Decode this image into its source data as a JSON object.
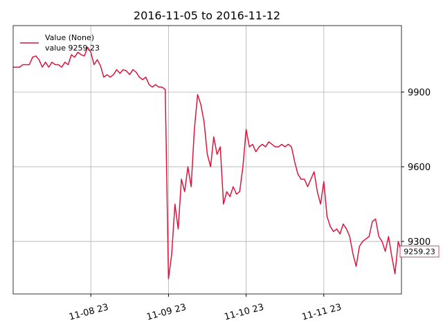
{
  "chart_data": {
    "type": "line",
    "title": "2016-11-05 to 2016-11-12",
    "x": [
      "11-07 23",
      "11-08 00",
      "11-08 01",
      "11-08 02",
      "11-08 03",
      "11-08 04",
      "11-08 05",
      "11-08 06",
      "11-08 07",
      "11-08 08",
      "11-08 09",
      "11-08 10",
      "11-08 11",
      "11-08 12",
      "11-08 13",
      "11-08 14",
      "11-08 15",
      "11-08 16",
      "11-08 17",
      "11-08 18",
      "11-08 19",
      "11-08 20",
      "11-08 21",
      "11-08 22",
      "11-08 23",
      "11-09 00",
      "11-09 01",
      "11-09 02",
      "11-09 03",
      "11-09 04",
      "11-09 05",
      "11-09 06",
      "11-09 07",
      "11-09 08",
      "11-09 09",
      "11-09 10",
      "11-09 11",
      "11-09 12",
      "11-09 13",
      "11-09 14",
      "11-09 15",
      "11-09 16",
      "11-09 17",
      "11-09 18",
      "11-09 19",
      "11-09 20",
      "11-09 21",
      "11-09 22",
      "11-09 23",
      "11-10 00",
      "11-10 01",
      "11-10 02",
      "11-10 03",
      "11-10 04",
      "11-10 05",
      "11-10 06",
      "11-10 07",
      "11-10 08",
      "11-10 09",
      "11-10 10",
      "11-10 11",
      "11-10 12",
      "11-10 13",
      "11-10 14",
      "11-10 15",
      "11-10 16",
      "11-10 17",
      "11-10 18",
      "11-10 19",
      "11-10 20",
      "11-10 21",
      "11-10 22",
      "11-10 23",
      "11-11 00",
      "11-11 01",
      "11-11 02",
      "11-11 03",
      "11-11 04",
      "11-11 05",
      "11-11 06",
      "11-11 07",
      "11-11 08",
      "11-11 09",
      "11-11 10",
      "11-11 11",
      "11-11 12",
      "11-11 13",
      "11-11 14",
      "11-11 15",
      "11-11 16",
      "11-11 17",
      "11-11 18",
      "11-11 19",
      "11-11 20",
      "11-11 21",
      "11-11 22",
      "11-11 23",
      "11-12 00",
      "11-12 01",
      "11-12 02",
      "11-12 03",
      "11-12 04",
      "11-12 05",
      "11-12 06",
      "11-12 07",
      "11-12 08",
      "11-12 09",
      "11-12 10",
      "11-12 11",
      "11-12 12",
      "11-12 13",
      "11-12 14",
      "11-12 15",
      "11-12 16",
      "11-12 17",
      "11-12 18",
      "11-12 19",
      "11-12 20",
      "11-12 21",
      "11-12 22",
      "11-12 23"
    ],
    "series": [
      {
        "name": "Value (None)",
        "color": "#dc143c",
        "values": [
          10000,
          10000,
          10000,
          10010,
          10010,
          10010,
          10040,
          10045,
          10030,
          10000,
          10020,
          10000,
          10020,
          10010,
          10010,
          10000,
          10020,
          10010,
          10050,
          10040,
          10060,
          10050,
          10045,
          10080,
          10060,
          10010,
          10030,
          10005,
          9960,
          9970,
          9960,
          9970,
          9990,
          9975,
          9990,
          9985,
          9970,
          9990,
          9980,
          9960,
          9950,
          9960,
          9930,
          9920,
          9930,
          9920,
          9920,
          9910,
          9150,
          9250,
          9450,
          9350,
          9550,
          9500,
          9600,
          9520,
          9750,
          9890,
          9850,
          9780,
          9650,
          9600,
          9720,
          9650,
          9680,
          9450,
          9500,
          9480,
          9520,
          9490,
          9500,
          9600,
          9750,
          9680,
          9690,
          9660,
          9680,
          9690,
          9680,
          9700,
          9690,
          9680,
          9680,
          9690,
          9680,
          9690,
          9680,
          9620,
          9570,
          9550,
          9550,
          9520,
          9550,
          9580,
          9500,
          9450,
          9540,
          9400,
          9360,
          9340,
          9350,
          9330,
          9370,
          9350,
          9320,
          9250,
          9200,
          9280,
          9300,
          9310,
          9320,
          9380,
          9390,
          9320,
          9300,
          9260,
          9320,
          9240,
          9170,
          9300,
          9259.23
        ]
      }
    ],
    "legend_note": "value 9259.23",
    "annotation": "9259.23",
    "xlim": [
      "11-07 23",
      "11-12 23"
    ],
    "xticks": [
      "11-08 23",
      "11-09 23",
      "11-10 23",
      "11-11 23"
    ],
    "ylim": [
      9089,
      10167
    ],
    "yticks": [
      9300,
      9600,
      9900
    ],
    "grid": true
  }
}
